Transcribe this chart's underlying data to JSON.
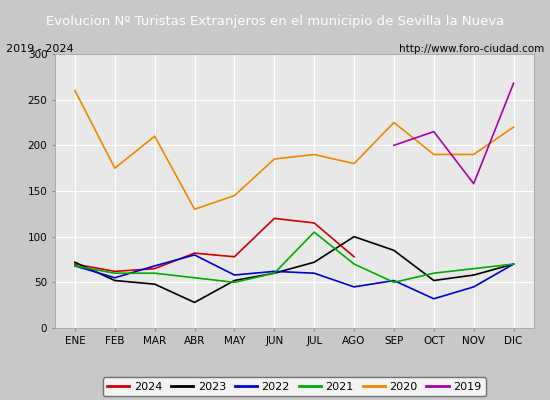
{
  "title": "Evolucion Nº Turistas Extranjeros en el municipio de Sevilla la Nueva",
  "subtitle_left": "2019 - 2024",
  "subtitle_right": "http://www.foro-ciudad.com",
  "xlabel_months": [
    "ENE",
    "FEB",
    "MAR",
    "ABR",
    "MAY",
    "JUN",
    "JUL",
    "AGO",
    "SEP",
    "OCT",
    "NOV",
    "DIC"
  ],
  "ylim": [
    0,
    300
  ],
  "yticks": [
    0,
    50,
    100,
    150,
    200,
    250,
    300
  ],
  "series": {
    "2024": {
      "color": "#cc0000",
      "data": [
        70,
        62,
        65,
        82,
        78,
        120,
        115,
        78,
        null,
        null,
        null,
        null
      ]
    },
    "2023": {
      "color": "#000000",
      "data": [
        72,
        52,
        48,
        28,
        52,
        60,
        72,
        100,
        85,
        52,
        58,
        70
      ]
    },
    "2022": {
      "color": "#0000cc",
      "data": [
        68,
        55,
        68,
        80,
        58,
        62,
        60,
        45,
        52,
        32,
        45,
        70
      ]
    },
    "2021": {
      "color": "#00aa00",
      "data": [
        68,
        60,
        60,
        55,
        50,
        60,
        105,
        70,
        50,
        60,
        65,
        70
      ]
    },
    "2020": {
      "color": "#ee8800",
      "data": [
        260,
        175,
        210,
        130,
        145,
        185,
        190,
        180,
        225,
        190,
        190,
        220
      ]
    },
    "2019": {
      "color": "#aa00aa",
      "data": [
        null,
        null,
        null,
        null,
        null,
        null,
        null,
        null,
        200,
        215,
        158,
        268
      ]
    }
  },
  "title_bg_color": "#4472c4",
  "title_text_color": "#ffffff",
  "plot_bg_color": "#e8e8e8",
  "chart_bg_color": "#d8d8d8",
  "grid_color": "#ffffff",
  "fig_bg_color": "#c8c8c8"
}
